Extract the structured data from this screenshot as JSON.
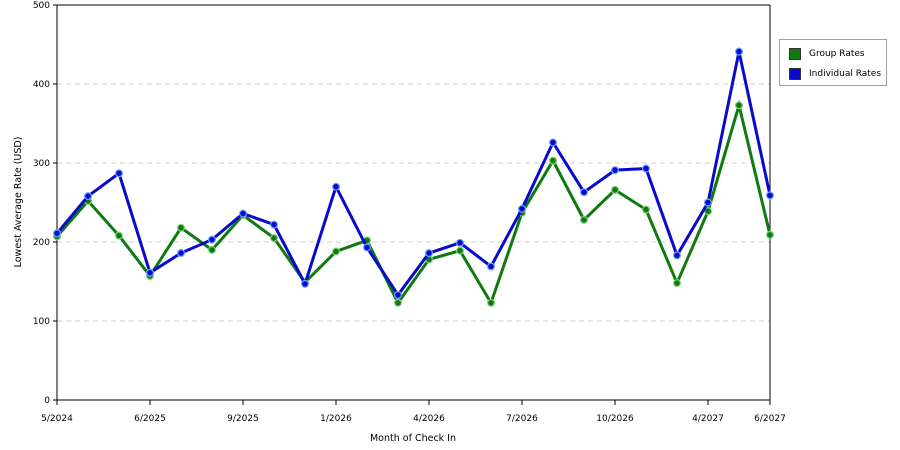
{
  "chart_data": {
    "type": "line",
    "xlabel": "Month of Check In",
    "ylabel": "Lowest Average Rate (USD)",
    "ylim": [
      0,
      500
    ],
    "yticks": [
      0,
      100,
      200,
      300,
      400,
      500
    ],
    "grid": true,
    "legend_position": "top-right",
    "x_tick_labels": [
      "5/2024",
      "6/2025",
      "9/2025",
      "1/2026",
      "4/2026",
      "7/2026",
      "10/2026",
      "4/2027",
      "6/2027"
    ],
    "x_tick_index": [
      0,
      3,
      6,
      9,
      12,
      15,
      18,
      21,
      23
    ],
    "series": [
      {
        "name": "Group Rates",
        "color": "#0f7a0f",
        "values": [
          207,
          252,
          208,
          157,
          218,
          190,
          234,
          205,
          149,
          188,
          202,
          123,
          178,
          189,
          123,
          237,
          303,
          228,
          266,
          241,
          148,
          239,
          373,
          209
        ]
      },
      {
        "name": "Individual Rates",
        "color": "#0a0acc",
        "values": [
          211,
          258,
          287,
          161,
          186,
          203,
          236,
          222,
          147,
          270,
          193,
          133,
          186,
          199,
          169,
          242,
          326,
          263,
          291,
          293,
          183,
          250,
          441,
          259
        ]
      }
    ]
  }
}
